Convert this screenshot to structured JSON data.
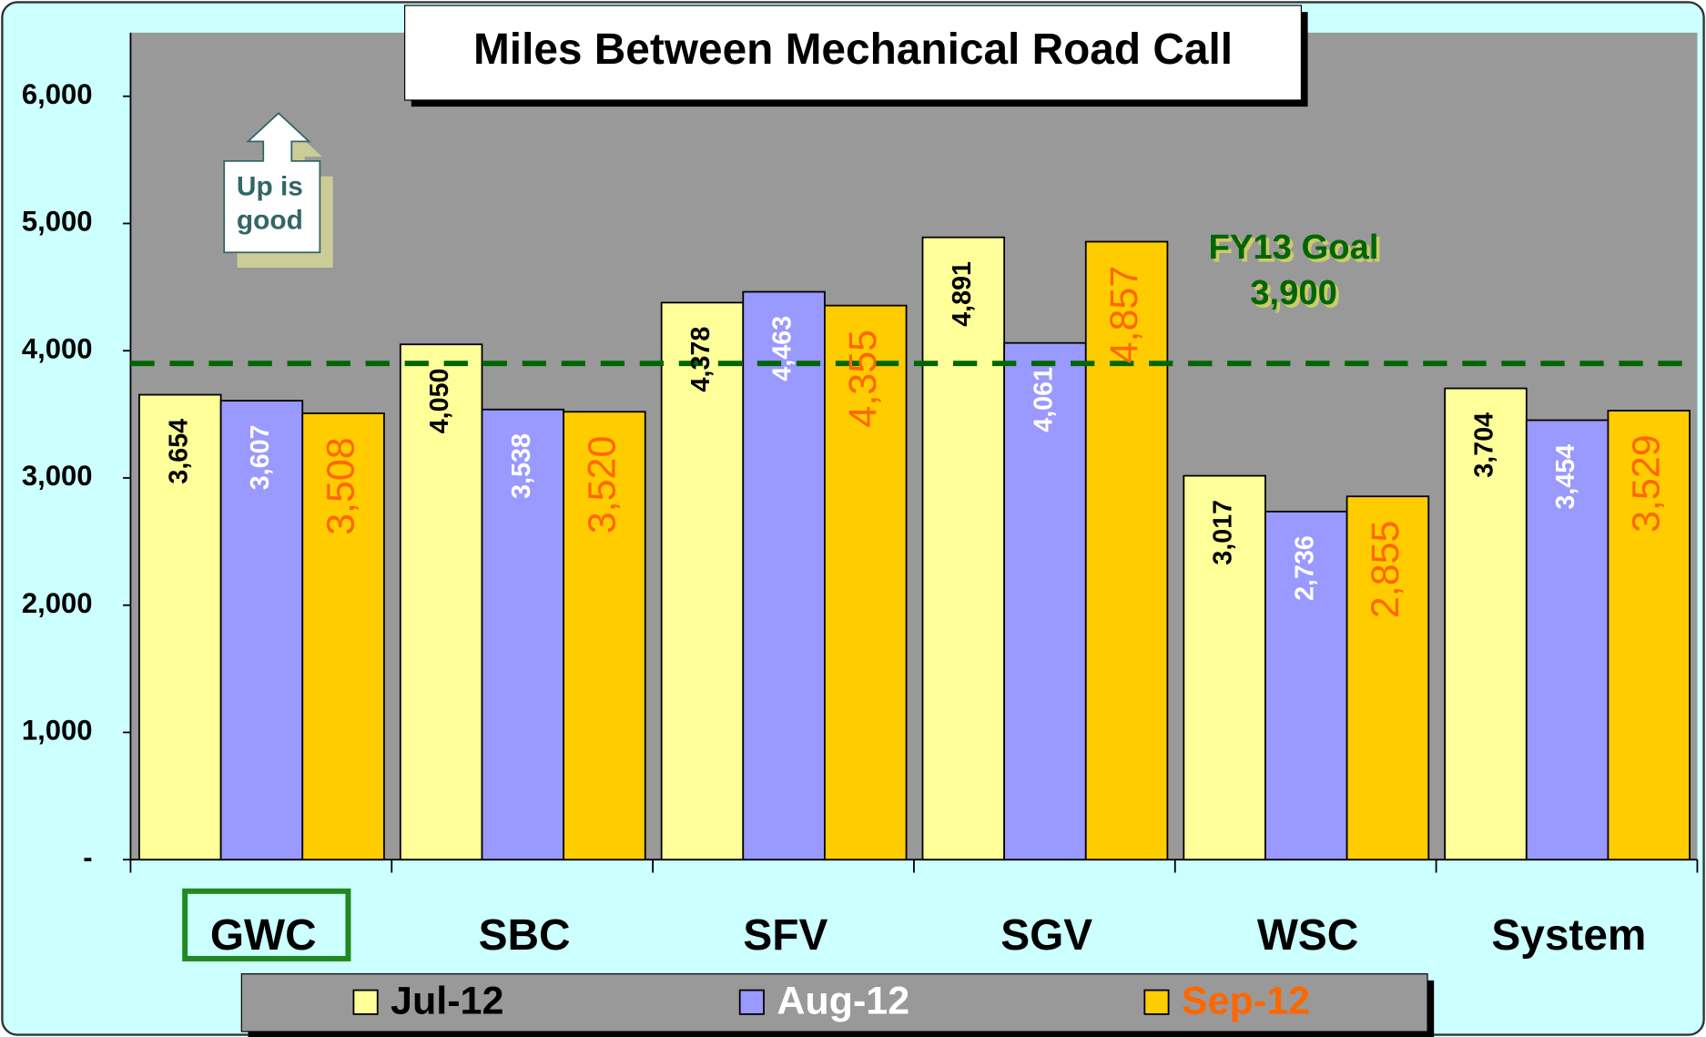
{
  "chart_data": {
    "type": "bar",
    "title": "Miles Between Mechanical Road Call",
    "categories": [
      "GWC",
      "SBC",
      "SFV",
      "SGV",
      "WSC",
      "System"
    ],
    "series": [
      {
        "name": "Jul-12",
        "color": "#ffff99",
        "label_color": "#000000",
        "values": [
          3654,
          4050,
          4378,
          4891,
          3017,
          3704
        ],
        "value_labels": [
          "3,654",
          "4,050",
          "4,378",
          "4,891",
          "3,017",
          "3,704"
        ]
      },
      {
        "name": "Aug-12",
        "color": "#9999ff",
        "label_color": "#ffffff",
        "values": [
          3607,
          3538,
          4463,
          4061,
          2736,
          3454
        ],
        "value_labels": [
          "3,607",
          "3,538",
          "4,463",
          "4,061",
          "2,736",
          "3,454"
        ]
      },
      {
        "name": "Sep-12",
        "color": "#ffcc00",
        "label_color": "#ff6600",
        "values": [
          3508,
          3520,
          4355,
          4857,
          2855,
          3529
        ],
        "value_labels": [
          "3,508",
          "3,520",
          "4,355",
          "4,857",
          "2,855",
          "3,529"
        ]
      }
    ],
    "ylim": [
      0,
      6500
    ],
    "yticks": [
      {
        "value": 0,
        "label": "-"
      },
      {
        "value": 1000,
        "label": "1,000"
      },
      {
        "value": 2000,
        "label": "2,000"
      },
      {
        "value": 3000,
        "label": "3,000"
      },
      {
        "value": 4000,
        "label": "4,000"
      },
      {
        "value": 5000,
        "label": "5,000"
      },
      {
        "value": 6000,
        "label": "6,000"
      }
    ],
    "goal": {
      "value": 3900,
      "label": "FY13 Goal",
      "value_label": "3,900",
      "color": "#006600"
    },
    "annotation": [
      "Up is",
      "good"
    ]
  }
}
